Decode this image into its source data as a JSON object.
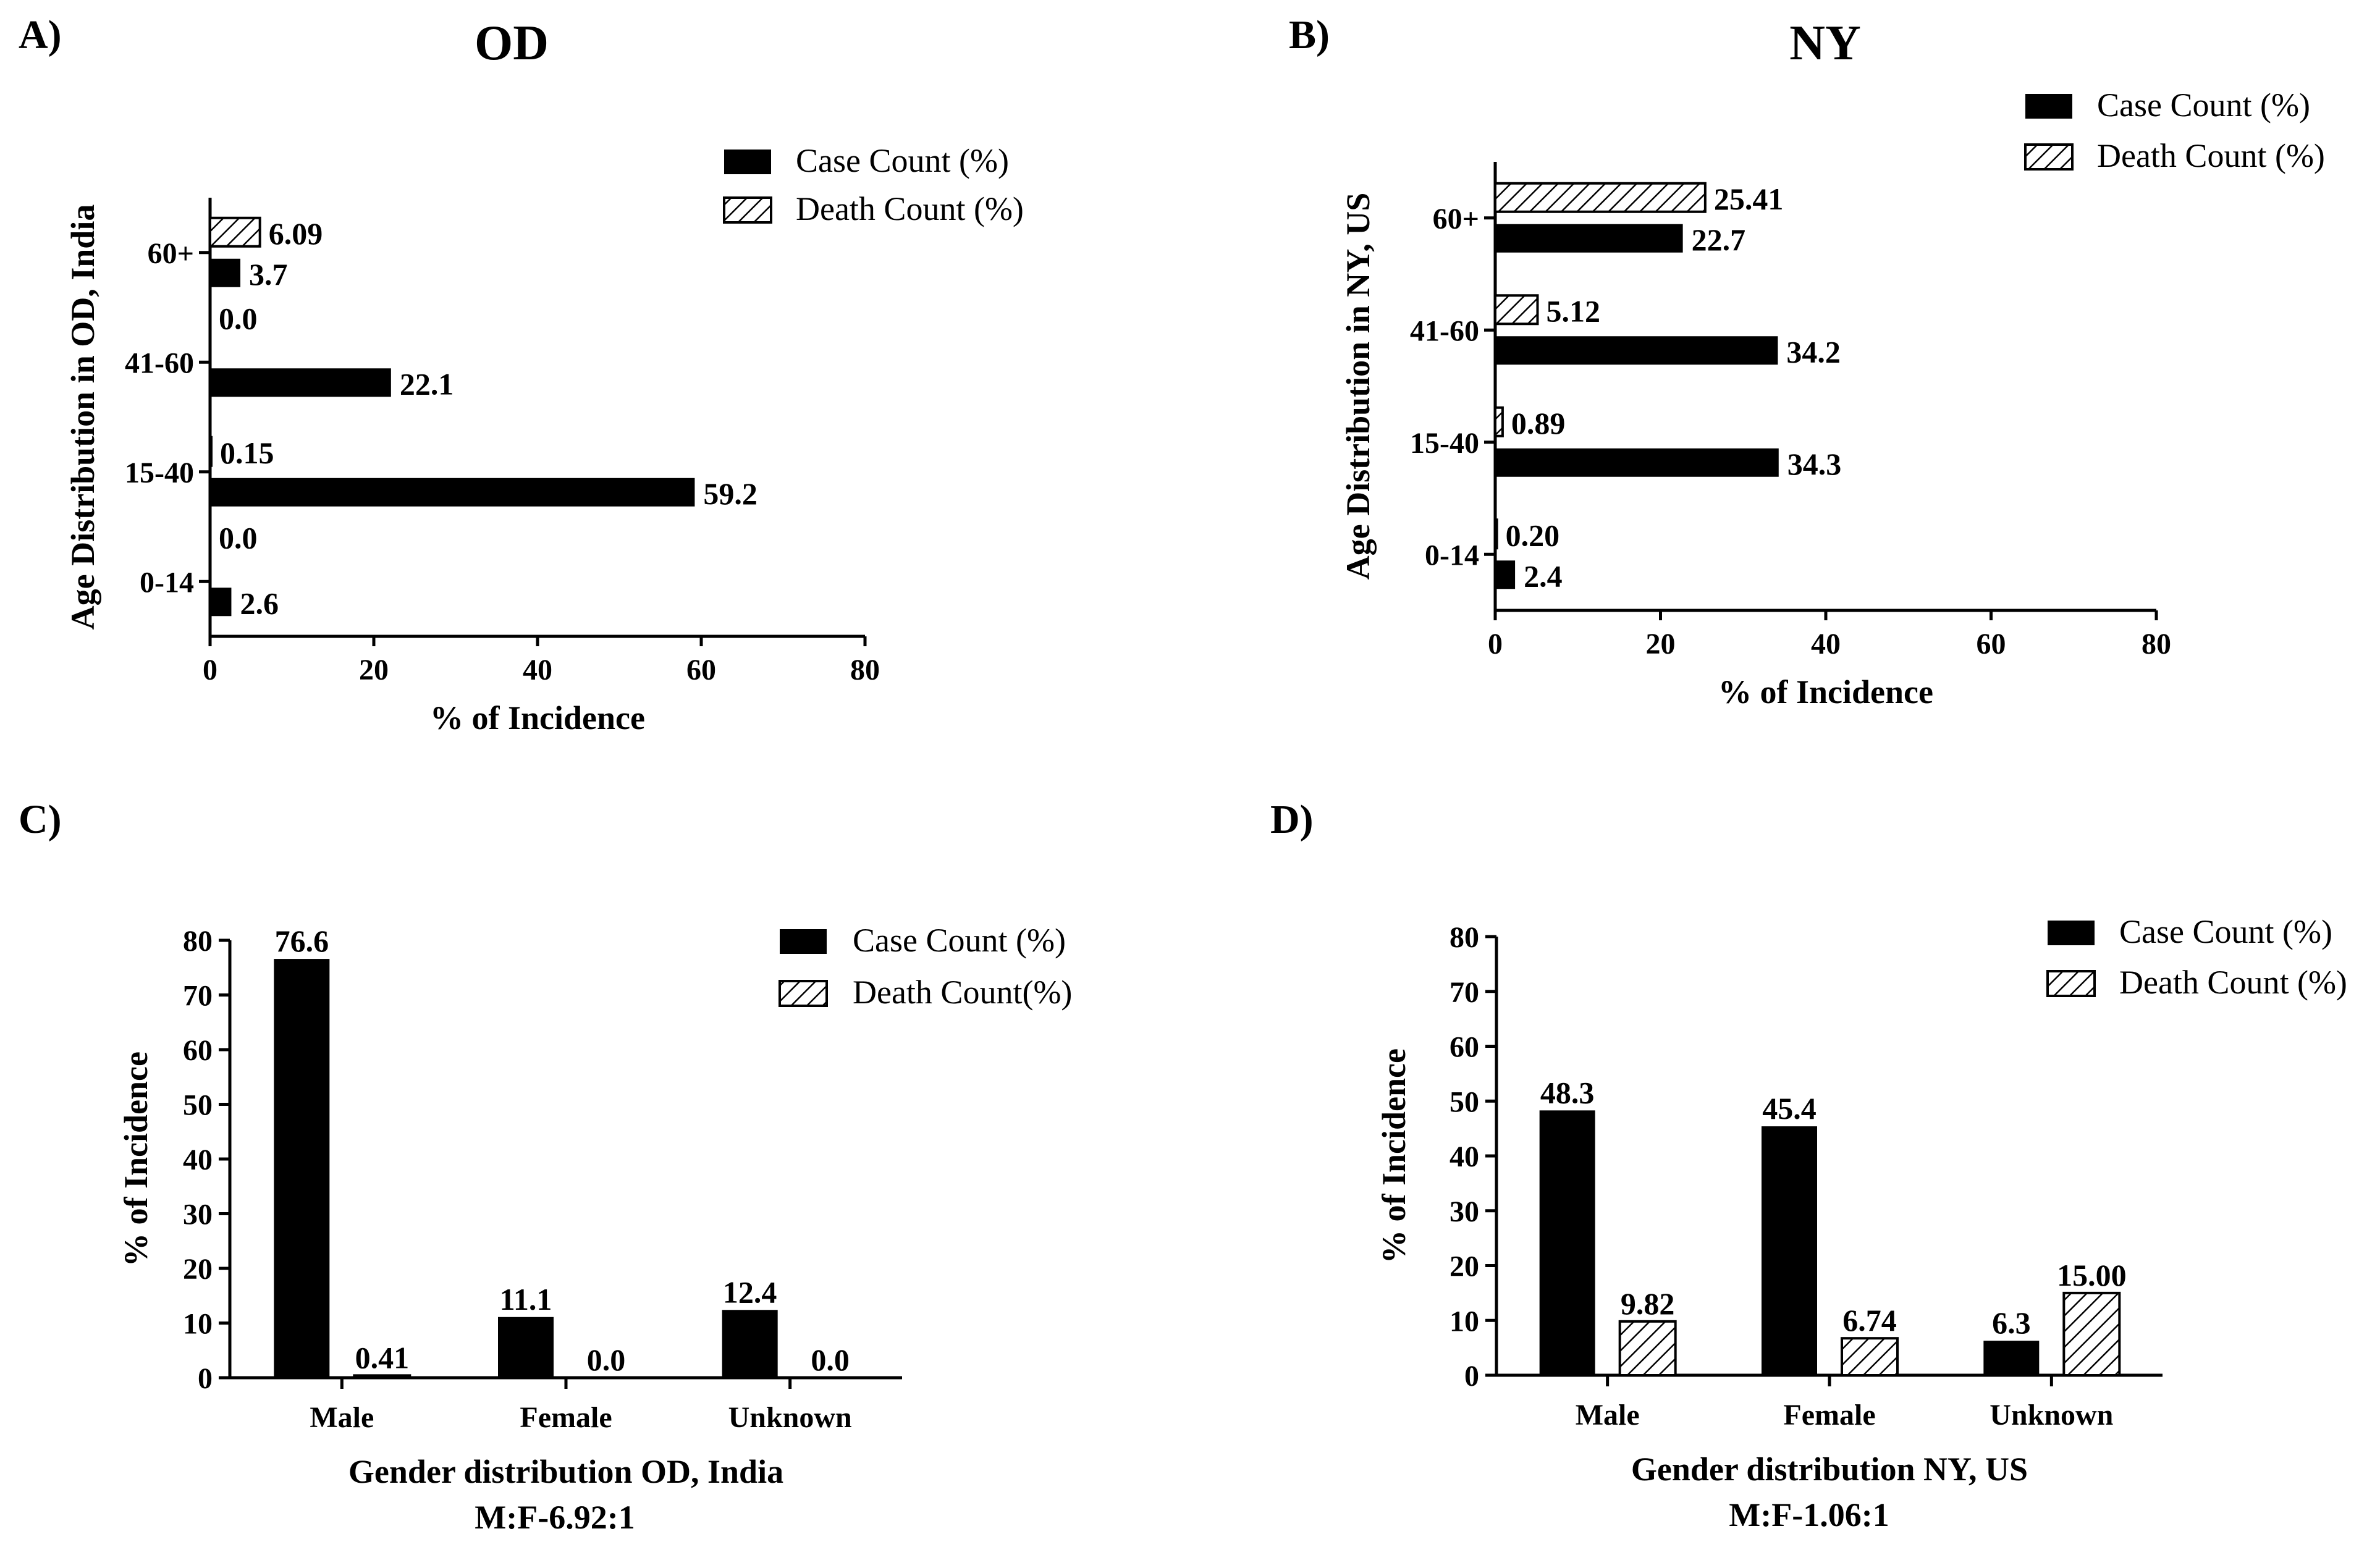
{
  "panels": [
    {
      "label": "A)",
      "title": "OD",
      "legend": {
        "case": "Case Count (%)",
        "death": "Death Count (%)"
      }
    },
    {
      "label": "B)",
      "title": "NY",
      "legend": {
        "case": "Case Count (%)",
        "death": "Death Count (%)"
      }
    },
    {
      "label": "C)",
      "title": "",
      "legend": {
        "case": "Case Count (%)",
        "death": "Death Count(%)"
      },
      "note": "M:F-6.92:1"
    },
    {
      "label": "D)",
      "title": "",
      "legend": {
        "case": "Case Count (%)",
        "death": "Death Count (%)"
      },
      "note": "M:F-1.06:1"
    }
  ],
  "colors": {
    "case": "#000000",
    "death_hatch": "#000000",
    "background": "#ffffff"
  },
  "chart_data": [
    {
      "type": "bar",
      "orientation": "horizontal",
      "title": "OD",
      "categories": [
        "0-14",
        "15-40",
        "41-60",
        "60+"
      ],
      "series": [
        {
          "name": "Case Count (%)",
          "values": [
            2.6,
            59.2,
            22.1,
            3.7
          ],
          "labels": [
            "2.6",
            "59.2",
            "22.1",
            "3.7"
          ]
        },
        {
          "name": "Death Count (%)",
          "values": [
            0.0,
            0.15,
            0.0,
            6.09
          ],
          "labels": [
            "0.0",
            "0.15",
            "0.0",
            "6.09"
          ]
        }
      ],
      "xlabel": "% of Incidence",
      "ylabel": "Age Distribution in OD, India",
      "xlim": [
        0,
        80
      ],
      "xticks": [
        "0",
        "20",
        "40",
        "60",
        "80"
      ],
      "legend_position": "top-right"
    },
    {
      "type": "bar",
      "orientation": "horizontal",
      "title": "NY",
      "categories": [
        "0-14",
        "15-40",
        "41-60",
        "60+"
      ],
      "series": [
        {
          "name": "Case Count (%)",
          "values": [
            2.4,
            34.3,
            34.2,
            22.7
          ],
          "labels": [
            "2.4",
            "34.3",
            "34.2",
            "22.7"
          ]
        },
        {
          "name": "Death Count (%)",
          "values": [
            0.2,
            0.89,
            5.12,
            25.41
          ],
          "labels": [
            "0.20",
            "0.89",
            "5.12",
            "25.41"
          ]
        }
      ],
      "xlabel": "% of Incidence",
      "ylabel": "Age Distribution in NY, US",
      "xlim": [
        0,
        80
      ],
      "xticks": [
        "0",
        "20",
        "40",
        "60",
        "80"
      ],
      "legend_position": "top-right"
    },
    {
      "type": "bar",
      "orientation": "vertical",
      "categories": [
        "Male",
        "Female",
        "Unknown"
      ],
      "series": [
        {
          "name": "Case Count (%)",
          "values": [
            76.6,
            11.1,
            12.4
          ],
          "labels": [
            "76.6",
            "11.1",
            "12.4"
          ]
        },
        {
          "name": "Death Count(%)",
          "values": [
            0.41,
            0.0,
            0.0
          ],
          "labels": [
            "0.41",
            "0.0",
            "0.0"
          ]
        }
      ],
      "xlabel": "Gender distribution OD, India",
      "ylabel": "% of Incidence",
      "ylim": [
        0,
        80
      ],
      "yticks": [
        "0",
        "10",
        "20",
        "30",
        "40",
        "50",
        "60",
        "70",
        "80"
      ],
      "legend_position": "top-right"
    },
    {
      "type": "bar",
      "orientation": "vertical",
      "categories": [
        "Male",
        "Female",
        "Unknown"
      ],
      "series": [
        {
          "name": "Case Count (%)",
          "values": [
            48.3,
            45.4,
            6.3
          ],
          "labels": [
            "48.3",
            "45.4",
            "6.3"
          ]
        },
        {
          "name": "Death Count (%)",
          "values": [
            9.82,
            6.74,
            15.0
          ],
          "labels": [
            "9.82",
            "6.74",
            "15.00"
          ]
        }
      ],
      "xlabel": "Gender distribution NY, US",
      "ylabel": "% of Incidence",
      "ylim": [
        0,
        80
      ],
      "yticks": [
        "0",
        "10",
        "20",
        "30",
        "40",
        "50",
        "60",
        "70",
        "80"
      ],
      "legend_position": "top-right"
    }
  ]
}
